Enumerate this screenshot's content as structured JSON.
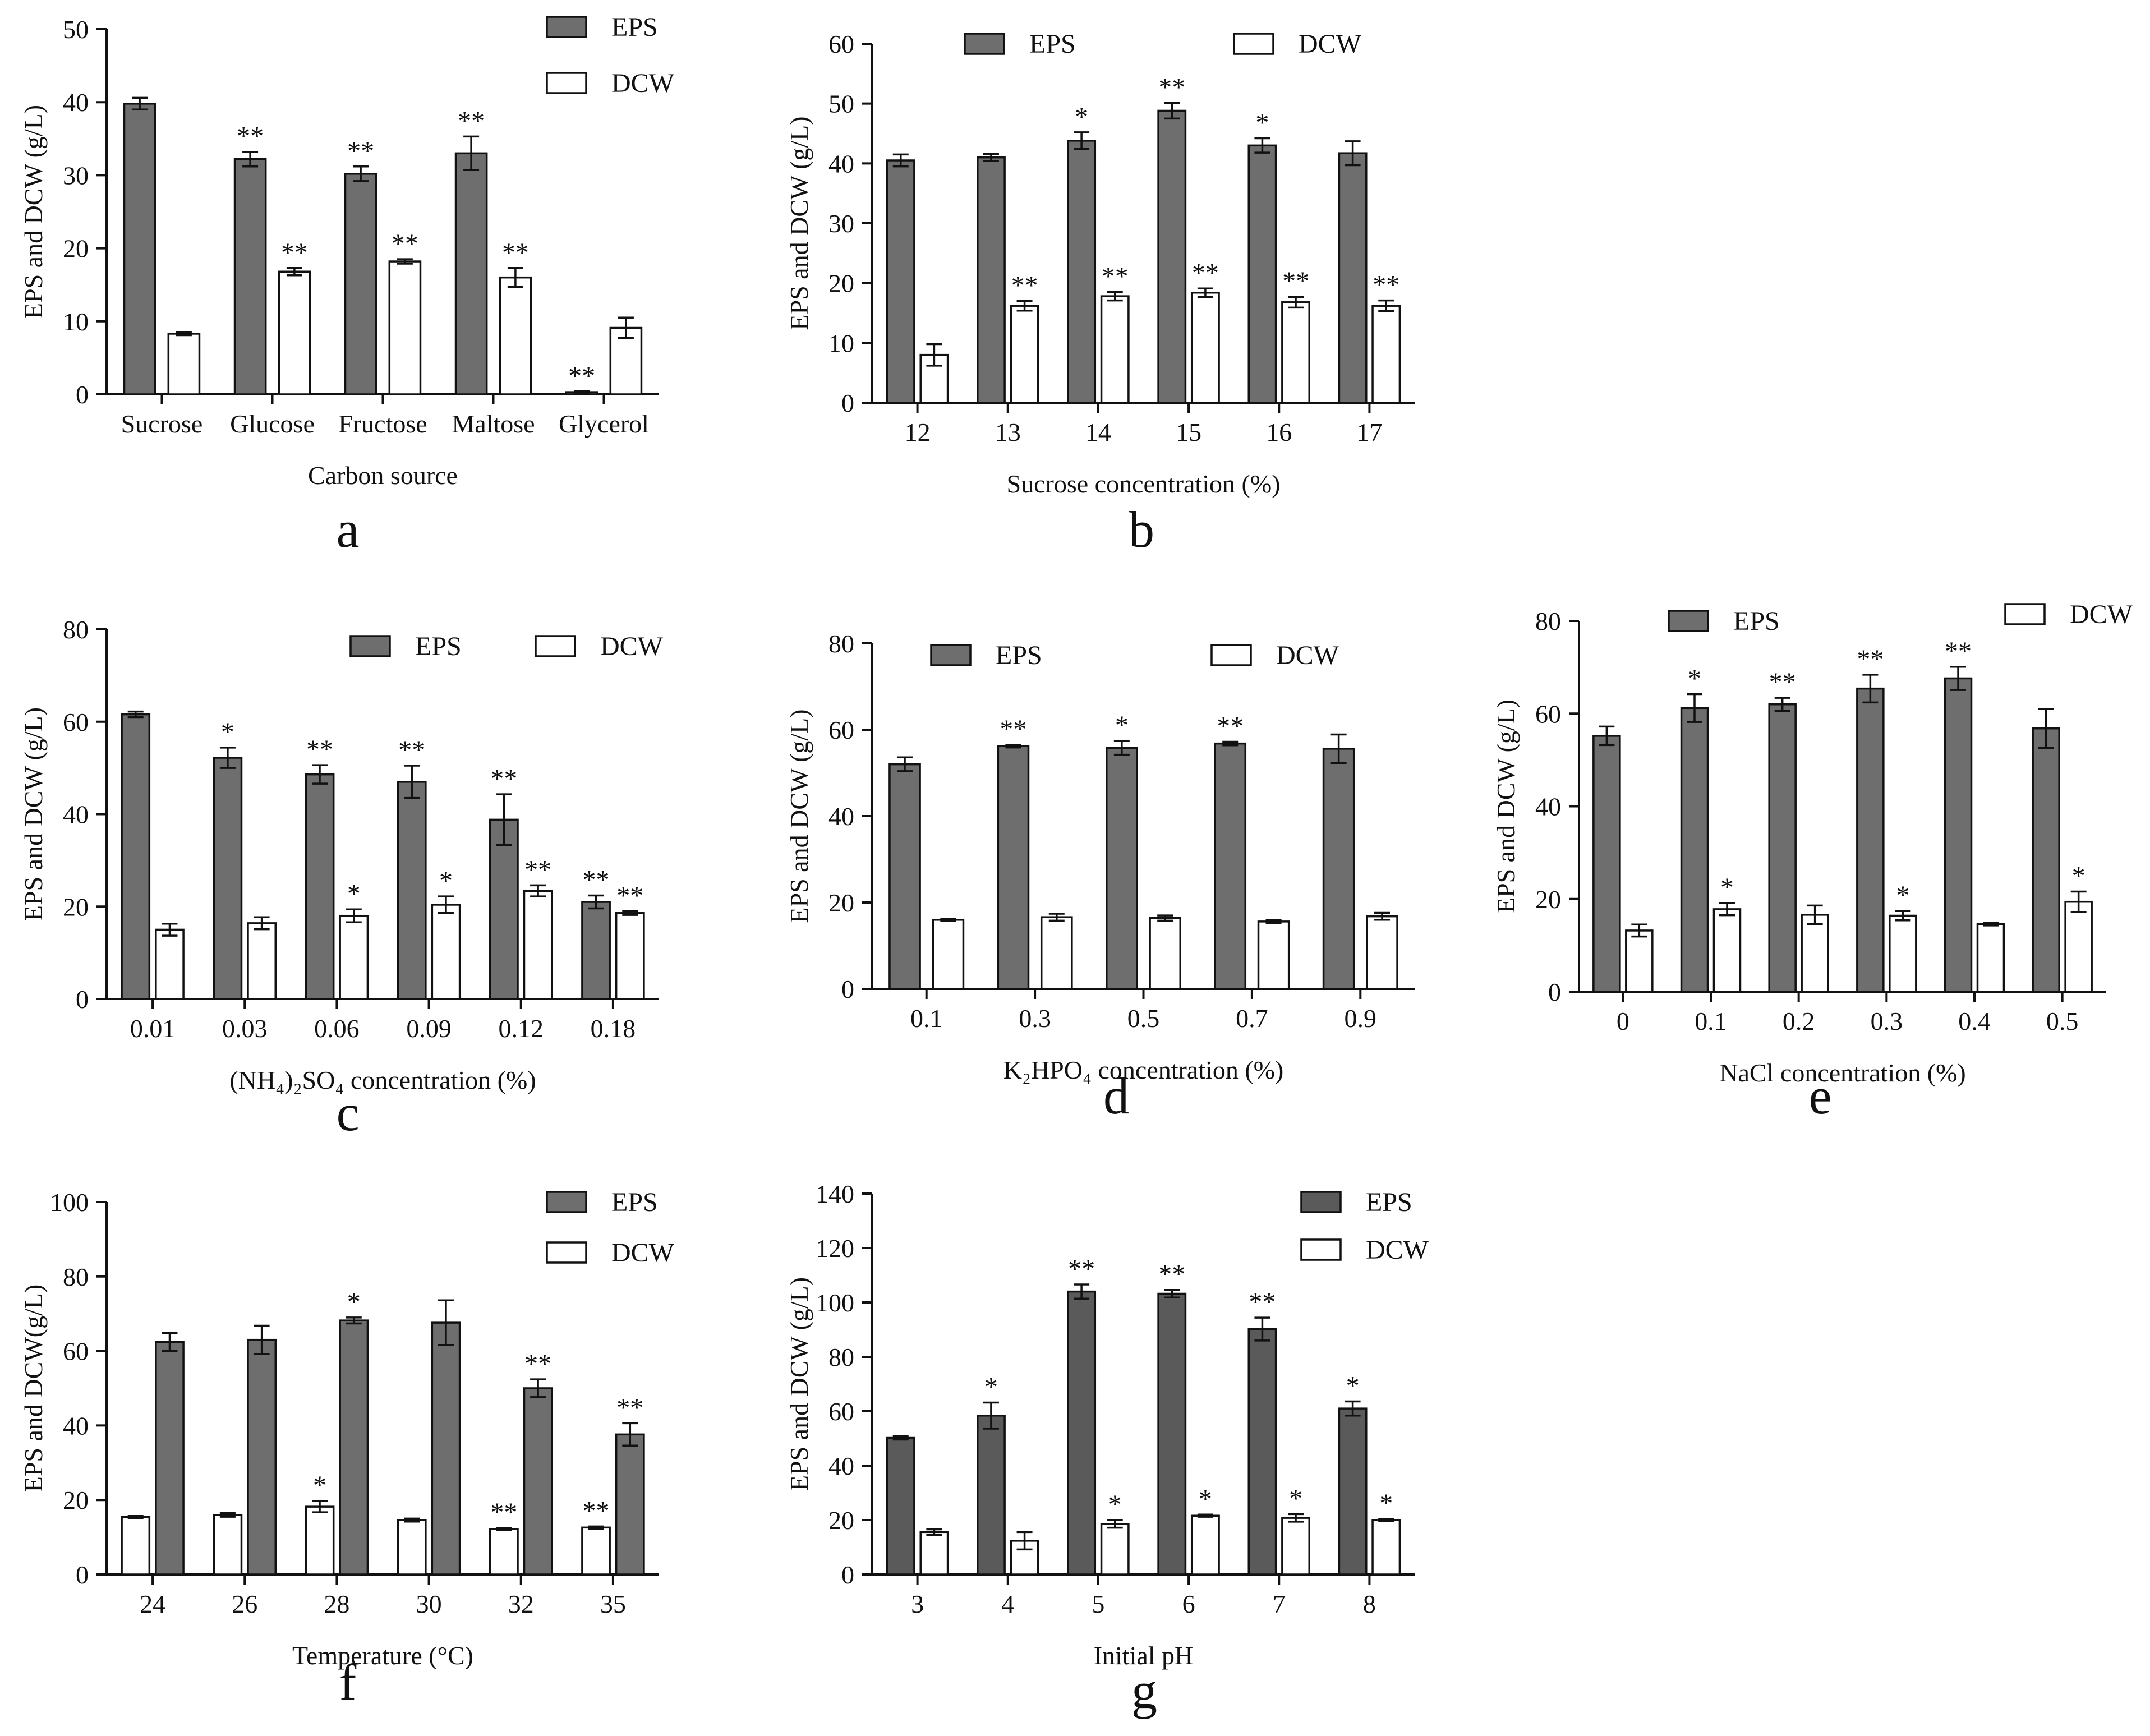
{
  "figure": {
    "colors": {
      "eps_fill": "#6e6e6e",
      "eps_fill_dark": "#5a5a5a",
      "dcw_fill": "#ffffff",
      "stroke": "#111111"
    },
    "legend_labels": {
      "eps": "EPS",
      "dcw": "DCW"
    }
  },
  "chart_data": [
    {
      "id": "a",
      "type": "bar",
      "panel_label": "a",
      "title": "",
      "xlabel": "Carbon source",
      "ylabel": "EPS and DCW (g/L)",
      "ylim": [
        0,
        50
      ],
      "yticks": [
        0,
        10,
        20,
        30,
        40,
        50
      ],
      "categories": [
        "Sucrose",
        "Glucose",
        "Fructose",
        "Maltose",
        "Glycerol"
      ],
      "series_order": [
        "EPS",
        "DCW"
      ],
      "series": [
        {
          "name": "EPS",
          "values": [
            39.8,
            32.2,
            30.2,
            33.0,
            0.3
          ],
          "errors": [
            0.8,
            1.0,
            1.0,
            2.3,
            0.1
          ],
          "significance": [
            "",
            "**",
            "**",
            "**",
            "**"
          ]
        },
        {
          "name": "DCW",
          "values": [
            8.3,
            16.8,
            18.2,
            16.0,
            9.1
          ],
          "errors": [
            0.2,
            0.5,
            0.3,
            1.3,
            1.4
          ],
          "significance": [
            "",
            "**",
            "**",
            "**",
            ""
          ]
        }
      ],
      "legend": "top-right-stacked"
    },
    {
      "id": "b",
      "type": "bar",
      "panel_label": "b",
      "title": "",
      "xlabel": "Sucrose concentration (%)",
      "ylabel": "EPS and DCW (g/L)",
      "ylim": [
        0,
        60
      ],
      "yticks": [
        0,
        10,
        20,
        30,
        40,
        50,
        60
      ],
      "categories": [
        "12",
        "13",
        "14",
        "15",
        "16",
        "17"
      ],
      "series_order": [
        "EPS",
        "DCW"
      ],
      "series": [
        {
          "name": "EPS",
          "values": [
            40.5,
            41.0,
            43.8,
            48.8,
            43.0,
            41.7
          ],
          "errors": [
            1.0,
            0.6,
            1.4,
            1.3,
            1.2,
            2.0
          ],
          "significance": [
            "",
            "",
            "*",
            "**",
            "*",
            ""
          ]
        },
        {
          "name": "DCW",
          "values": [
            8.0,
            16.2,
            17.8,
            18.4,
            16.8,
            16.2
          ],
          "errors": [
            1.8,
            0.8,
            0.7,
            0.7,
            0.9,
            0.9
          ],
          "significance": [
            "",
            "**",
            "**",
            "**",
            "**",
            "**"
          ]
        }
      ],
      "legend": "top-row"
    },
    {
      "id": "c",
      "type": "bar",
      "panel_label": "c",
      "title": "",
      "xlabel": "(NH₄)₂SO₄ concentration (%)",
      "ylabel": "EPS and DCW (g/L)",
      "ylim": [
        0,
        80
      ],
      "yticks": [
        0,
        20,
        40,
        60,
        80
      ],
      "categories": [
        "0.01",
        "0.03",
        "0.06",
        "0.09",
        "0.12",
        "0.18"
      ],
      "series_order": [
        "EPS",
        "DCW"
      ],
      "series": [
        {
          "name": "EPS",
          "values": [
            61.6,
            52.2,
            48.6,
            47.0,
            38.8,
            21.0
          ],
          "errors": [
            0.6,
            2.2,
            2.0,
            3.5,
            5.5,
            1.4
          ],
          "significance": [
            "",
            "*",
            "**",
            "**",
            "**",
            "**"
          ]
        },
        {
          "name": "DCW",
          "values": [
            15.0,
            16.4,
            18.0,
            20.4,
            23.4,
            18.6
          ],
          "errors": [
            1.3,
            1.3,
            1.4,
            1.8,
            1.2,
            0.4
          ],
          "significance": [
            "",
            "",
            "*",
            "*",
            "**",
            "**"
          ]
        }
      ],
      "legend": "top-row"
    },
    {
      "id": "d",
      "type": "bar",
      "panel_label": "d",
      "title": "",
      "xlabel": "K₂HPO₄ concentration (%)",
      "ylabel": "EPS and DCW (g/L)",
      "ylim": [
        0,
        80
      ],
      "yticks": [
        0,
        20,
        40,
        60,
        80
      ],
      "categories": [
        "0.1",
        "0.3",
        "0.5",
        "0.7",
        "0.9"
      ],
      "series_order": [
        "EPS",
        "DCW"
      ],
      "series": [
        {
          "name": "EPS",
          "values": [
            52.0,
            56.2,
            55.8,
            56.8,
            55.6
          ],
          "errors": [
            1.6,
            0.3,
            1.6,
            0.4,
            3.3
          ],
          "significance": [
            "",
            "**",
            "*",
            "**",
            ""
          ]
        },
        {
          "name": "DCW",
          "values": [
            16.0,
            16.6,
            16.4,
            15.6,
            16.8
          ],
          "errors": [
            0.2,
            0.8,
            0.6,
            0.3,
            0.8
          ],
          "significance": [
            "",
            "",
            "",
            "",
            ""
          ]
        }
      ],
      "legend": "top-row"
    },
    {
      "id": "e",
      "type": "bar",
      "panel_label": "e",
      "title": "",
      "xlabel": "NaCl concentration (%)",
      "ylabel": "EPS and DCW (g/L)",
      "ylim": [
        0,
        80
      ],
      "yticks": [
        0,
        20,
        40,
        60,
        80
      ],
      "categories": [
        "0",
        "0.1",
        "0.2",
        "0.3",
        "0.4",
        "0.5"
      ],
      "series_order": [
        "EPS",
        "DCW"
      ],
      "series": [
        {
          "name": "EPS",
          "values": [
            55.2,
            61.2,
            62.0,
            65.4,
            67.6,
            56.8
          ],
          "errors": [
            2.0,
            3.0,
            1.4,
            3.0,
            2.5,
            4.2
          ],
          "significance": [
            "",
            "*",
            "**",
            "**",
            "**",
            ""
          ]
        },
        {
          "name": "DCW",
          "values": [
            13.2,
            17.8,
            16.6,
            16.4,
            14.6,
            19.4
          ],
          "errors": [
            1.3,
            1.3,
            2.0,
            1.0,
            0.3,
            2.2
          ],
          "significance": [
            "",
            "*",
            "",
            "*",
            "",
            "*"
          ]
        }
      ],
      "legend": "top-row"
    },
    {
      "id": "f",
      "type": "bar",
      "panel_label": "f",
      "title": "",
      "xlabel": "Temperature (°C)",
      "ylabel": "EPS and DCW(g/L)",
      "ylim": [
        0,
        100
      ],
      "yticks": [
        0,
        20,
        40,
        60,
        80,
        100
      ],
      "categories": [
        "24",
        "26",
        "28",
        "30",
        "32",
        "35"
      ],
      "series_order": [
        "DCW",
        "EPS"
      ],
      "series": [
        {
          "name": "EPS",
          "values": [
            62.4,
            63.0,
            68.2,
            67.6,
            50.0,
            37.6
          ],
          "errors": [
            2.4,
            3.8,
            0.8,
            6.0,
            2.4,
            3.0
          ],
          "significance": [
            "",
            "",
            "*",
            "",
            "**",
            "**"
          ]
        },
        {
          "name": "DCW",
          "values": [
            15.4,
            16.0,
            18.2,
            14.6,
            12.2,
            12.6
          ],
          "errors": [
            0.3,
            0.5,
            1.5,
            0.4,
            0.3,
            0.3
          ],
          "significance": [
            "",
            "",
            "*",
            "",
            "**",
            "**"
          ]
        }
      ],
      "legend": "top-right-stacked"
    },
    {
      "id": "g",
      "type": "bar",
      "panel_label": "g",
      "title": "",
      "xlabel": "Initial pH",
      "ylabel": "EPS and DCW (g/L)",
      "ylim": [
        0,
        140
      ],
      "yticks": [
        0,
        20,
        40,
        60,
        80,
        100,
        120,
        140
      ],
      "categories": [
        "3",
        "4",
        "5",
        "6",
        "7",
        "8"
      ],
      "series_order": [
        "EPS",
        "DCW"
      ],
      "series": [
        {
          "name": "EPS",
          "values": [
            50.2,
            58.4,
            104.0,
            103.2,
            90.2,
            61.0
          ],
          "errors": [
            0.6,
            4.8,
            2.6,
            1.4,
            4.2,
            2.6
          ],
          "significance": [
            "",
            "*",
            "**",
            "**",
            "**",
            "*"
          ]
        },
        {
          "name": "DCW",
          "values": [
            15.6,
            12.4,
            18.6,
            21.6,
            20.8,
            20.0
          ],
          "errors": [
            1.0,
            3.2,
            1.4,
            0.4,
            1.4,
            0.4
          ],
          "significance": [
            "",
            "",
            "*",
            "*",
            "*",
            "*"
          ]
        }
      ],
      "legend": "top-right-stacked"
    }
  ]
}
